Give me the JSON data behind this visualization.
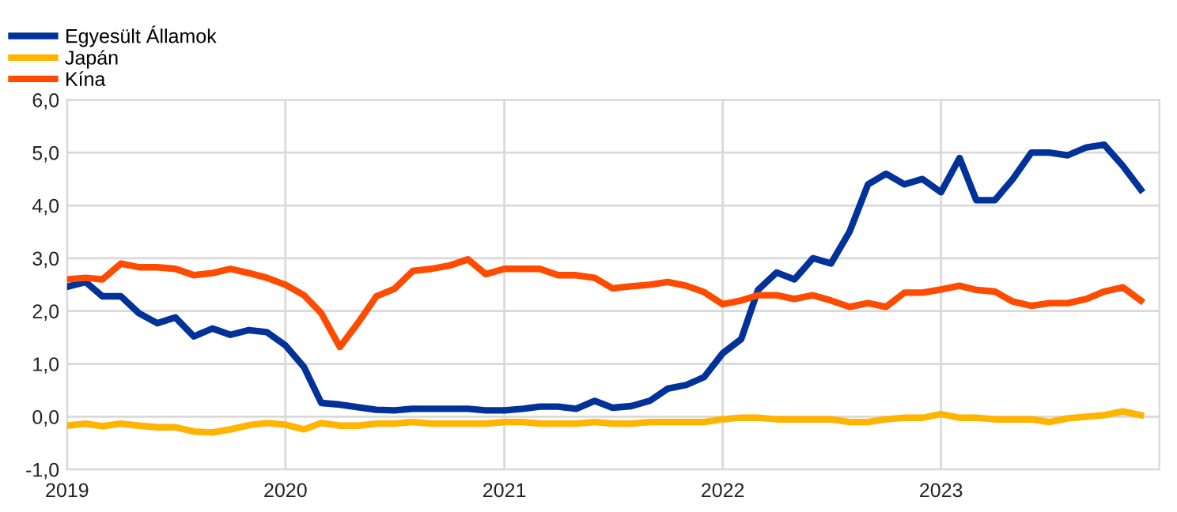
{
  "chart_data": {
    "type": "line",
    "x": [
      "2019-01",
      "2019-02",
      "2019-03",
      "2019-04",
      "2019-05",
      "2019-06",
      "2019-07",
      "2019-08",
      "2019-09",
      "2019-10",
      "2019-11",
      "2019-12",
      "2020-01",
      "2020-02",
      "2020-03",
      "2020-04",
      "2020-05",
      "2020-06",
      "2020-07",
      "2020-08",
      "2020-09",
      "2020-10",
      "2020-11",
      "2020-12",
      "2021-01",
      "2021-02",
      "2021-03",
      "2021-04",
      "2021-05",
      "2021-06",
      "2021-07",
      "2021-08",
      "2021-09",
      "2021-10",
      "2021-11",
      "2021-12",
      "2022-01",
      "2022-02",
      "2022-03",
      "2022-04",
      "2022-05",
      "2022-06",
      "2022-07",
      "2022-08",
      "2022-09",
      "2022-10",
      "2022-11",
      "2022-12",
      "2023-01",
      "2023-02",
      "2023-03",
      "2023-04",
      "2023-05",
      "2023-06",
      "2023-07",
      "2023-08",
      "2023-09",
      "2023-10",
      "2023-11",
      "2023-12"
    ],
    "series": [
      {
        "name": "Egyesült Államok",
        "color": "#003299",
        "values": [
          2.46,
          2.55,
          2.28,
          2.28,
          1.96,
          1.77,
          1.88,
          1.52,
          1.67,
          1.55,
          1.64,
          1.6,
          1.35,
          0.94,
          0.26,
          0.23,
          0.18,
          0.13,
          0.12,
          0.15,
          0.15,
          0.15,
          0.15,
          0.12,
          0.12,
          0.15,
          0.19,
          0.19,
          0.15,
          0.3,
          0.17,
          0.2,
          0.3,
          0.53,
          0.6,
          0.75,
          1.2,
          1.47,
          2.4,
          2.73,
          2.6,
          3.0,
          2.9,
          3.5,
          4.4,
          4.6,
          4.4,
          4.5,
          4.25,
          4.9,
          4.1,
          4.1,
          4.5,
          5.0,
          5.0,
          4.95,
          5.1,
          5.15,
          4.75,
          4.3
        ]
      },
      {
        "name": "Japán",
        "color": "#ffb400",
        "values": [
          -0.17,
          -0.13,
          -0.18,
          -0.13,
          -0.17,
          -0.2,
          -0.2,
          -0.28,
          -0.3,
          -0.24,
          -0.16,
          -0.12,
          -0.15,
          -0.24,
          -0.12,
          -0.17,
          -0.17,
          -0.13,
          -0.13,
          -0.1,
          -0.13,
          -0.13,
          -0.13,
          -0.13,
          -0.1,
          -0.1,
          -0.13,
          -0.13,
          -0.13,
          -0.1,
          -0.13,
          -0.13,
          -0.1,
          -0.1,
          -0.1,
          -0.1,
          -0.05,
          -0.02,
          -0.02,
          -0.05,
          -0.05,
          -0.05,
          -0.05,
          -0.1,
          -0.1,
          -0.05,
          -0.02,
          -0.02,
          0.05,
          -0.02,
          -0.02,
          -0.05,
          -0.05,
          -0.05,
          -0.1,
          -0.03,
          0.0,
          0.03,
          0.1,
          0.03
        ]
      },
      {
        "name": "Kína",
        "color": "#ff4b00",
        "values": [
          2.6,
          2.63,
          2.6,
          2.9,
          2.83,
          2.83,
          2.8,
          2.68,
          2.72,
          2.8,
          2.72,
          2.63,
          2.5,
          2.3,
          1.96,
          1.32,
          1.77,
          2.28,
          2.42,
          2.76,
          2.8,
          2.86,
          2.98,
          2.7,
          2.8,
          2.8,
          2.8,
          2.68,
          2.68,
          2.63,
          2.43,
          2.47,
          2.5,
          2.55,
          2.48,
          2.36,
          2.13,
          2.2,
          2.3,
          2.3,
          2.23,
          2.3,
          2.2,
          2.08,
          2.15,
          2.08,
          2.35,
          2.35,
          2.41,
          2.48,
          2.4,
          2.37,
          2.18,
          2.1,
          2.15,
          2.15,
          2.23,
          2.37,
          2.45,
          2.2
        ]
      }
    ],
    "xlim": [
      "2019-01",
      "2024-01"
    ],
    "xticks": [
      {
        "value": "2019-01",
        "label": "2019"
      },
      {
        "value": "2020-01",
        "label": "2020"
      },
      {
        "value": "2021-01",
        "label": "2021"
      },
      {
        "value": "2022-01",
        "label": "2022"
      },
      {
        "value": "2023-01",
        "label": "2023"
      }
    ],
    "ylim": [
      -1.0,
      6.0
    ],
    "yticks": [
      {
        "value": -1.0,
        "label": "-1,0"
      },
      {
        "value": 0.0,
        "label": "0,0"
      },
      {
        "value": 1.0,
        "label": "1,0"
      },
      {
        "value": 2.0,
        "label": "2,0"
      },
      {
        "value": 3.0,
        "label": "3,0"
      },
      {
        "value": 4.0,
        "label": "4,0"
      },
      {
        "value": 5.0,
        "label": "5,0"
      },
      {
        "value": 6.0,
        "label": "6,0"
      }
    ],
    "grid": true,
    "legend": "top left",
    "marker": "none",
    "line_style": "solid"
  }
}
